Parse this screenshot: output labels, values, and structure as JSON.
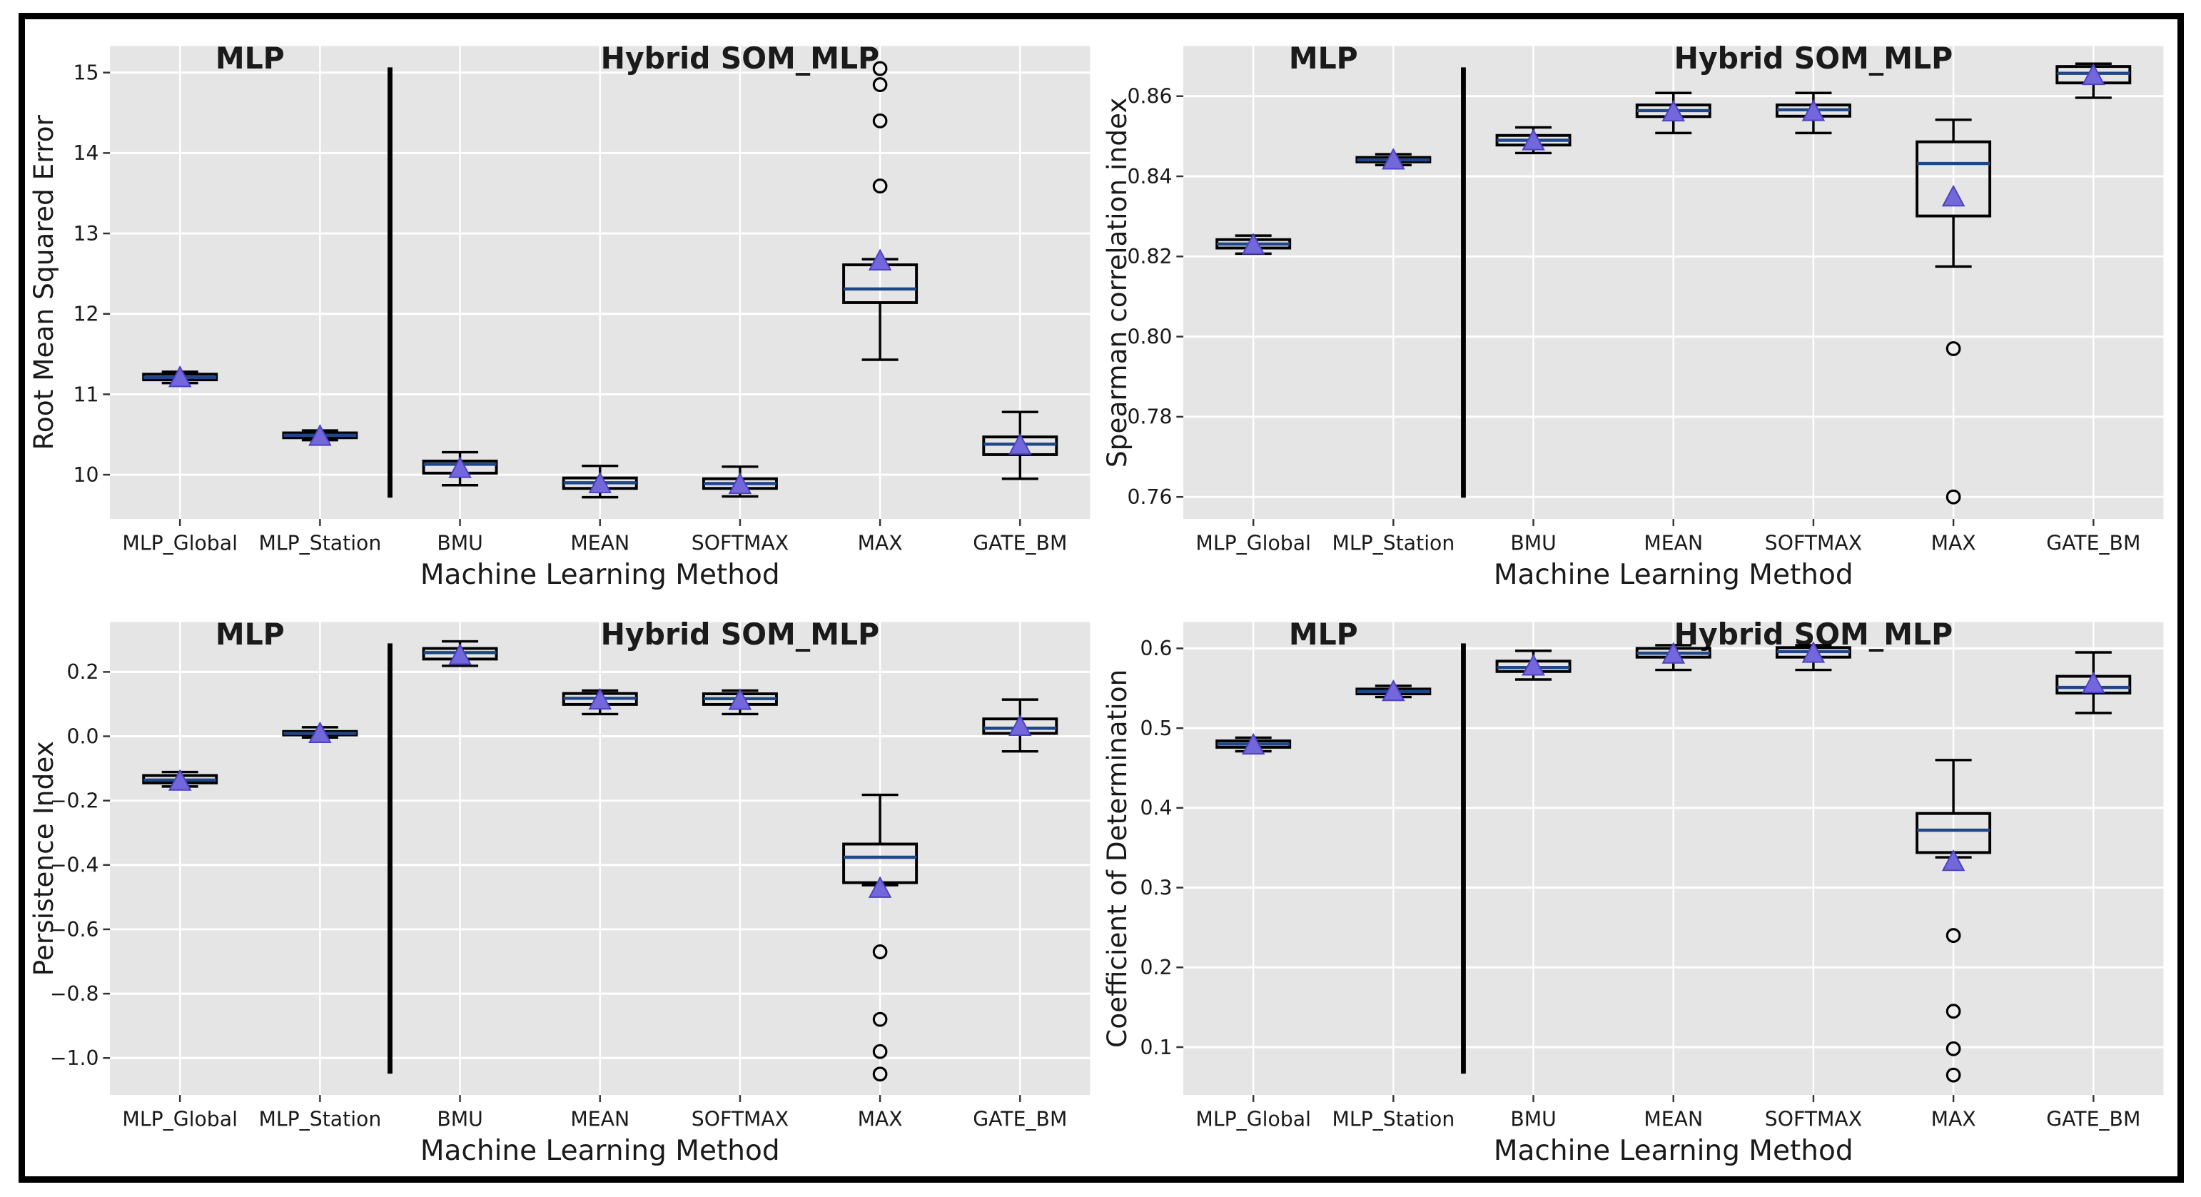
{
  "figure": {
    "layout_note": "2x2 grid of box plots",
    "background": "#ffffff",
    "frame_color": "#000000",
    "panel_bg": "#e5e5e5",
    "grid_color": "#ffffff",
    "box_edge_color": "#000000",
    "median_color": "#1f4788",
    "mean_marker_color": "#7367dc",
    "mean_marker_edge": "#4d41c0",
    "outlier_fill": "#efefef",
    "divider_color": "#000000"
  },
  "chart_data": [
    {
      "type": "box",
      "position": "top-left",
      "group_labels": {
        "left": "MLP",
        "right": "Hybrid SOM_MLP"
      },
      "group_split_index": 2,
      "xlabel": "Machine Learning Method",
      "ylabel": "Root Mean Squared Error",
      "ylim": [
        9.45,
        15.33
      ],
      "ytick_vals": [
        10,
        11,
        12,
        13,
        14,
        15
      ],
      "ytick_labels": [
        "10",
        "11",
        "12",
        "13",
        "14",
        "15"
      ],
      "categories": [
        "MLP_Global",
        "MLP_Station",
        "BMU",
        "MEAN",
        "SOFTMAX",
        "MAX",
        "GATE_BM"
      ],
      "boxes": [
        {
          "label": "MLP_Global",
          "whislo": 11.14,
          "q1": 11.18,
          "med": 11.21,
          "q3": 11.25,
          "whishi": 11.28,
          "mean": 11.21,
          "outliers": []
        },
        {
          "label": "MLP_Station",
          "whislo": 10.43,
          "q1": 10.46,
          "med": 10.49,
          "q3": 10.52,
          "whishi": 10.55,
          "mean": 10.48,
          "outliers": []
        },
        {
          "label": "BMU",
          "whislo": 9.87,
          "q1": 10.02,
          "med": 10.13,
          "q3": 10.17,
          "whishi": 10.28,
          "mean": 10.08,
          "outliers": []
        },
        {
          "label": "MEAN",
          "whislo": 9.72,
          "q1": 9.83,
          "med": 9.9,
          "q3": 9.96,
          "whishi": 10.11,
          "mean": 9.89,
          "outliers": []
        },
        {
          "label": "SOFTMAX",
          "whislo": 9.73,
          "q1": 9.83,
          "med": 9.89,
          "q3": 9.95,
          "whishi": 10.1,
          "mean": 9.88,
          "outliers": []
        },
        {
          "label": "MAX",
          "whislo": 11.43,
          "q1": 12.14,
          "med": 12.31,
          "q3": 12.61,
          "whishi": 12.68,
          "mean": 12.66,
          "outliers": [
            13.59,
            14.4,
            14.85,
            15.05
          ]
        },
        {
          "label": "GATE_BM",
          "whislo": 9.95,
          "q1": 10.25,
          "med": 10.38,
          "q3": 10.47,
          "whishi": 10.78,
          "mean": 10.37,
          "outliers": []
        }
      ]
    },
    {
      "type": "box",
      "position": "top-right",
      "group_labels": {
        "left": "MLP",
        "right": "Hybrid SOM_MLP"
      },
      "group_split_index": 2,
      "xlabel": "Machine Learning Method",
      "ylabel": "Spearman correlation index",
      "ylim": [
        0.7545,
        0.8725
      ],
      "ytick_vals": [
        0.76,
        0.78,
        0.8,
        0.82,
        0.84,
        0.86
      ],
      "ytick_labels": [
        "0.76",
        "0.78",
        "0.80",
        "0.82",
        "0.84",
        "0.86"
      ],
      "categories": [
        "MLP_Global",
        "MLP_Station",
        "BMU",
        "MEAN",
        "SOFTMAX",
        "MAX",
        "GATE_BM"
      ],
      "boxes": [
        {
          "label": "MLP_Global",
          "whislo": 0.8207,
          "q1": 0.8221,
          "med": 0.8231,
          "q3": 0.8242,
          "whishi": 0.8252,
          "mean": 0.8229,
          "outliers": []
        },
        {
          "label": "MLP_Station",
          "whislo": 0.8428,
          "q1": 0.8436,
          "med": 0.8441,
          "q3": 0.8447,
          "whishi": 0.8455,
          "mean": 0.8441,
          "outliers": []
        },
        {
          "label": "BMU",
          "whislo": 0.8458,
          "q1": 0.8478,
          "med": 0.849,
          "q3": 0.8502,
          "whishi": 0.8522,
          "mean": 0.8489,
          "outliers": []
        },
        {
          "label": "MEAN",
          "whislo": 0.8508,
          "q1": 0.8549,
          "med": 0.8564,
          "q3": 0.8578,
          "whishi": 0.8608,
          "mean": 0.8561,
          "outliers": []
        },
        {
          "label": "SOFTMAX",
          "whislo": 0.8508,
          "q1": 0.855,
          "med": 0.8566,
          "q3": 0.8578,
          "whishi": 0.8608,
          "mean": 0.8562,
          "outliers": []
        },
        {
          "label": "MAX",
          "whislo": 0.8175,
          "q1": 0.8301,
          "med": 0.8432,
          "q3": 0.8486,
          "whishi": 0.8541,
          "mean": 0.8349,
          "outliers": [
            0.797,
            0.76
          ]
        },
        {
          "label": "GATE_BM",
          "whislo": 0.8596,
          "q1": 0.8633,
          "med": 0.8657,
          "q3": 0.8674,
          "whishi": 0.8681,
          "mean": 0.8652,
          "outliers": []
        }
      ]
    },
    {
      "type": "box",
      "position": "bottom-left",
      "group_labels": {
        "left": "MLP",
        "right": "Hybrid SOM_MLP"
      },
      "group_split_index": 2,
      "xlabel": "Machine Learning Method",
      "ylabel": "Persistence Index",
      "ylim": [
        -1.115,
        0.355
      ],
      "ytick_vals": [
        0.2,
        0.0,
        -0.2,
        -0.4,
        -0.6,
        -0.8,
        -1.0
      ],
      "ytick_labels": [
        "0.2",
        "0.0",
        "−0.2",
        "−0.4",
        "−0.6",
        "−0.8",
        "−1.0"
      ],
      "categories": [
        "MLP_Global",
        "MLP_Station",
        "BMU",
        "MEAN",
        "SOFTMAX",
        "MAX",
        "GATE_BM"
      ],
      "boxes": [
        {
          "label": "MLP_Global",
          "whislo": -0.156,
          "q1": -0.145,
          "med": -0.136,
          "q3": -0.122,
          "whishi": -0.111,
          "mean": -0.139,
          "outliers": []
        },
        {
          "label": "MLP_Station",
          "whislo": -0.004,
          "q1": 0.004,
          "med": 0.009,
          "q3": 0.015,
          "whishi": 0.028,
          "mean": 0.009,
          "outliers": []
        },
        {
          "label": "BMU",
          "whislo": 0.219,
          "q1": 0.24,
          "med": 0.26,
          "q3": 0.273,
          "whishi": 0.295,
          "mean": 0.252,
          "outliers": []
        },
        {
          "label": "MEAN",
          "whislo": 0.069,
          "q1": 0.099,
          "med": 0.118,
          "q3": 0.133,
          "whishi": 0.142,
          "mean": 0.113,
          "outliers": []
        },
        {
          "label": "SOFTMAX",
          "whislo": 0.069,
          "q1": 0.099,
          "med": 0.117,
          "q3": 0.132,
          "whishi": 0.142,
          "mean": 0.112,
          "outliers": []
        },
        {
          "label": "MAX",
          "whislo": -0.463,
          "q1": -0.455,
          "med": -0.376,
          "q3": -0.335,
          "whishi": -0.182,
          "mean": -0.472,
          "outliers": [
            -0.67,
            -0.88,
            -0.98,
            -1.05
          ]
        },
        {
          "label": "GATE_BM",
          "whislo": -0.047,
          "q1": 0.009,
          "med": 0.025,
          "q3": 0.054,
          "whishi": 0.114,
          "mean": 0.031,
          "outliers": []
        }
      ]
    },
    {
      "type": "box",
      "position": "bottom-right",
      "group_labels": {
        "left": "MLP",
        "right": "Hybrid SOM_MLP"
      },
      "group_split_index": 2,
      "xlabel": "Machine Learning Method",
      "ylabel": "Coefficient of Determination",
      "ylim": [
        0.04,
        0.633
      ],
      "ytick_vals": [
        0.1,
        0.2,
        0.3,
        0.4,
        0.5,
        0.6
      ],
      "ytick_labels": [
        "0.1",
        "0.2",
        "0.3",
        "0.4",
        "0.5",
        "0.6"
      ],
      "categories": [
        "MLP_Global",
        "MLP_Station",
        "BMU",
        "MEAN",
        "SOFTMAX",
        "MAX",
        "GATE_BM"
      ],
      "boxes": [
        {
          "label": "MLP_Global",
          "whislo": 0.471,
          "q1": 0.476,
          "med": 0.48,
          "q3": 0.484,
          "whishi": 0.488,
          "mean": 0.479,
          "outliers": []
        },
        {
          "label": "MLP_Station",
          "whislo": 0.539,
          "q1": 0.543,
          "med": 0.546,
          "q3": 0.549,
          "whishi": 0.553,
          "mean": 0.546,
          "outliers": []
        },
        {
          "label": "BMU",
          "whislo": 0.561,
          "q1": 0.571,
          "med": 0.576,
          "q3": 0.584,
          "whishi": 0.597,
          "mean": 0.578,
          "outliers": []
        },
        {
          "label": "MEAN",
          "whislo": 0.573,
          "q1": 0.589,
          "med": 0.594,
          "q3": 0.6,
          "whishi": 0.604,
          "mean": 0.593,
          "outliers": []
        },
        {
          "label": "SOFTMAX",
          "whislo": 0.573,
          "q1": 0.589,
          "med": 0.596,
          "q3": 0.601,
          "whishi": 0.604,
          "mean": 0.594,
          "outliers": []
        },
        {
          "label": "MAX",
          "whislo": 0.338,
          "q1": 0.344,
          "med": 0.372,
          "q3": 0.393,
          "whishi": 0.46,
          "mean": 0.333,
          "outliers": [
            0.24,
            0.145,
            0.098,
            0.065
          ]
        },
        {
          "label": "GATE_BM",
          "whislo": 0.519,
          "q1": 0.544,
          "med": 0.551,
          "q3": 0.565,
          "whishi": 0.595,
          "mean": 0.556,
          "outliers": []
        }
      ]
    }
  ]
}
